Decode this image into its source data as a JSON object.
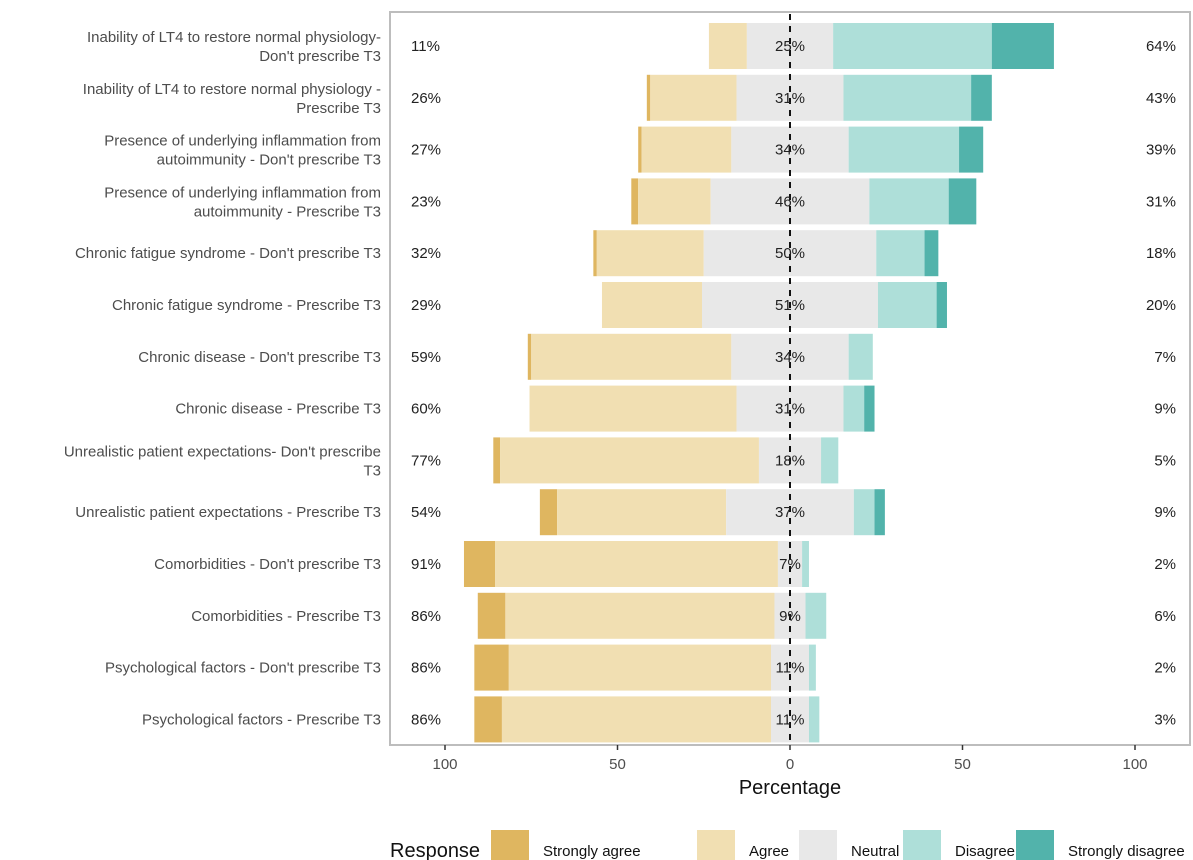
{
  "chart_data": {
    "type": "bar",
    "subtype": "diverging-stacked-likert",
    "orientation": "horizontal",
    "xlabel": "Percentage",
    "xlim": [
      -100,
      100
    ],
    "xticks": [
      -100,
      -50,
      0,
      50,
      100
    ],
    "xtick_labels": [
      "100",
      "50",
      "0",
      "50",
      "100"
    ],
    "grid": false,
    "legend_title": "Response",
    "legend_position": "bottom",
    "colors": {
      "Strongly agree": "#dfb660",
      "Agree": "#f1dfb2",
      "Neutral": "#e8e8e8",
      "Disagree": "#aedfd9",
      "Strongly disagree": "#52b3ab"
    },
    "categories": [
      "Inability of LT4 to restore normal physiology-\nDon't prescribe T3",
      "Inability of LT4 to restore normal physiology -\nPrescribe T3",
      "Presence of underlying inflammation from\nautoimmunity - Don't prescribe T3",
      "Presence of underlying inflammation from\nautoimmunity - Prescribe T3",
      "Chronic fatigue syndrome - Don't prescribe T3",
      "Chronic fatigue syndrome - Prescribe T3",
      "Chronic disease - Don't prescribe T3",
      "Chronic disease - Prescribe T3",
      "Unrealistic patient expectations- Don't prescribe\nT3",
      "Unrealistic patient expectations - Prescribe T3",
      "Comorbidities - Don't prescribe T3",
      "Comorbidities - Prescribe T3",
      "Psychological factors - Don't prescribe T3",
      "Psychological factors - Prescribe T3"
    ],
    "series": [
      {
        "name": "Strongly agree",
        "values": [
          0,
          1,
          1,
          2,
          1,
          0,
          1,
          0,
          2,
          5,
          9,
          8,
          10,
          8
        ]
      },
      {
        "name": "Agree",
        "values": [
          11,
          25,
          26,
          21,
          31,
          29,
          58,
          60,
          75,
          49,
          82,
          78,
          76,
          78
        ]
      },
      {
        "name": "Neutral",
        "values": [
          25,
          31,
          34,
          46,
          50,
          51,
          34,
          31,
          18,
          37,
          7,
          9,
          11,
          11
        ]
      },
      {
        "name": "Disagree",
        "values": [
          46,
          37,
          32,
          23,
          14,
          17,
          7,
          6,
          5,
          6,
          2,
          6,
          2,
          3
        ]
      },
      {
        "name": "Strongly disagree",
        "values": [
          18,
          6,
          7,
          8,
          4,
          3,
          0,
          3,
          0,
          3,
          0,
          0,
          0,
          0
        ]
      }
    ],
    "left_labels": [
      "11%",
      "26%",
      "27%",
      "23%",
      "32%",
      "29%",
      "59%",
      "60%",
      "77%",
      "54%",
      "91%",
      "86%",
      "86%",
      "86%"
    ],
    "center_labels": [
      "25%",
      "31%",
      "34%",
      "46%",
      "50%",
      "51%",
      "34%",
      "31%",
      "18%",
      "37%",
      "7%",
      "9%",
      "11%",
      "11%"
    ],
    "right_labels": [
      "64%",
      "43%",
      "39%",
      "31%",
      "18%",
      "20%",
      "7%",
      "9%",
      "5%",
      "9%",
      "2%",
      "6%",
      "2%",
      "3%"
    ]
  }
}
